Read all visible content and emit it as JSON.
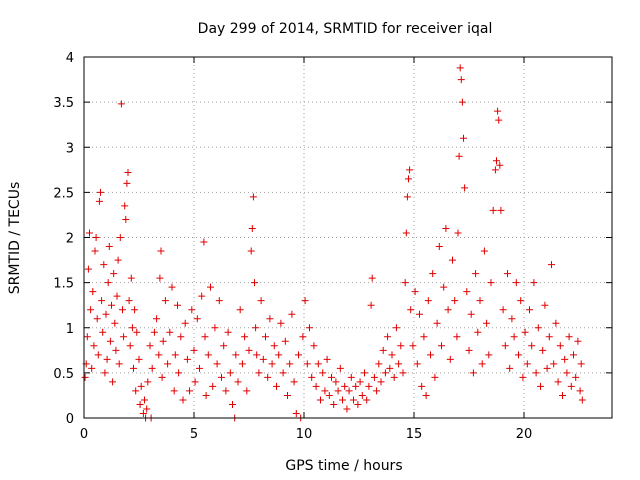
{
  "chart_data": {
    "type": "scatter",
    "title": "Day 299 of 2014, SRMTID for receiver iqal",
    "xlabel": "GPS time / hours",
    "ylabel": "SRMTID / TECUs",
    "xlim": [
      0,
      24
    ],
    "ylim": [
      0,
      4
    ],
    "xticks": [
      0,
      5,
      10,
      15,
      20
    ],
    "xtick_labels": [
      "0",
      "5",
      "10",
      "15",
      "20"
    ],
    "yticks": [
      0,
      0.5,
      1,
      1.5,
      2,
      2.5,
      3,
      3.5,
      4
    ],
    "ytick_labels": [
      "0",
      "0.5",
      "1",
      "1.5",
      "2",
      "2.5",
      "3",
      "3.5",
      "4"
    ],
    "grid": true,
    "marker": "+",
    "color": "#e00000",
    "series": [
      {
        "name": "SRMTID",
        "points": [
          [
            0.05,
            0.45
          ],
          [
            0.1,
            0.6
          ],
          [
            0.15,
            0.9
          ],
          [
            0.2,
            1.65
          ],
          [
            0.25,
            2.05
          ],
          [
            0.3,
            1.2
          ],
          [
            0.35,
            0.55
          ],
          [
            0.4,
            1.4
          ],
          [
            0.45,
            0.8
          ],
          [
            0.5,
            1.85
          ],
          [
            0.55,
            2.0
          ],
          [
            0.6,
            1.1
          ],
          [
            0.65,
            0.7
          ],
          [
            0.7,
            2.4
          ],
          [
            0.75,
            2.5
          ],
          [
            0.8,
            1.3
          ],
          [
            0.85,
            0.95
          ],
          [
            0.9,
            1.7
          ],
          [
            0.95,
            0.5
          ],
          [
            1.0,
            1.15
          ],
          [
            1.05,
            0.65
          ],
          [
            1.1,
            1.5
          ],
          [
            1.15,
            1.9
          ],
          [
            1.2,
            0.85
          ],
          [
            1.25,
            1.25
          ],
          [
            1.3,
            0.4
          ],
          [
            1.35,
            1.6
          ],
          [
            1.4,
            1.05
          ],
          [
            1.45,
            0.75
          ],
          [
            1.5,
            1.35
          ],
          [
            1.55,
            1.75
          ],
          [
            1.6,
            0.6
          ],
          [
            1.65,
            2.0
          ],
          [
            1.7,
            3.48
          ],
          [
            1.75,
            1.2
          ],
          [
            1.8,
            0.9
          ],
          [
            1.85,
            2.35
          ],
          [
            1.9,
            2.2
          ],
          [
            1.95,
            2.6
          ],
          [
            2.0,
            2.72
          ],
          [
            2.05,
            1.3
          ],
          [
            2.1,
            0.8
          ],
          [
            2.15,
            1.55
          ],
          [
            2.2,
            1.0
          ],
          [
            2.25,
            0.55
          ],
          [
            2.3,
            1.2
          ],
          [
            2.35,
            0.3
          ],
          [
            2.4,
            0.95
          ],
          [
            2.5,
            0.65
          ],
          [
            2.55,
            0.15
          ],
          [
            2.6,
            0.35
          ],
          [
            2.7,
            0.05
          ],
          [
            2.75,
            0.2
          ],
          [
            2.8,
            0.0
          ],
          [
            2.85,
            0.1
          ],
          [
            2.9,
            0.4
          ],
          [
            3.0,
            0.8
          ],
          [
            3.05,
            0.0
          ],
          [
            3.1,
            0.55
          ],
          [
            3.2,
            0.95
          ],
          [
            3.3,
            1.1
          ],
          [
            3.4,
            0.7
          ],
          [
            3.45,
            1.55
          ],
          [
            3.5,
            1.85
          ],
          [
            3.55,
            0.45
          ],
          [
            3.6,
            0.85
          ],
          [
            3.7,
            1.3
          ],
          [
            3.8,
            0.6
          ],
          [
            3.9,
            0.95
          ],
          [
            4.0,
            1.45
          ],
          [
            4.1,
            0.3
          ],
          [
            4.15,
            0.7
          ],
          [
            4.25,
            1.25
          ],
          [
            4.3,
            0.5
          ],
          [
            4.4,
            0.9
          ],
          [
            4.5,
            0.2
          ],
          [
            4.6,
            1.05
          ],
          [
            4.7,
            0.65
          ],
          [
            4.8,
            0.3
          ],
          [
            4.9,
            1.2
          ],
          [
            5.0,
            0.75
          ],
          [
            5.05,
            0.4
          ],
          [
            5.15,
            1.1
          ],
          [
            5.25,
            0.55
          ],
          [
            5.35,
            1.35
          ],
          [
            5.45,
            1.95
          ],
          [
            5.5,
            0.9
          ],
          [
            5.55,
            0.25
          ],
          [
            5.65,
            0.7
          ],
          [
            5.75,
            1.45
          ],
          [
            5.85,
            0.35
          ],
          [
            5.95,
            1.0
          ],
          [
            6.05,
            0.6
          ],
          [
            6.15,
            1.3
          ],
          [
            6.25,
            0.45
          ],
          [
            6.35,
            0.8
          ],
          [
            6.45,
            0.3
          ],
          [
            6.55,
            0.95
          ],
          [
            6.65,
            0.5
          ],
          [
            6.75,
            0.15
          ],
          [
            6.85,
            0.0
          ],
          [
            6.9,
            0.7
          ],
          [
            7.0,
            0.4
          ],
          [
            7.1,
            1.2
          ],
          [
            7.2,
            0.6
          ],
          [
            7.3,
            0.9
          ],
          [
            7.4,
            0.3
          ],
          [
            7.5,
            0.75
          ],
          [
            7.6,
            1.85
          ],
          [
            7.65,
            2.1
          ],
          [
            7.7,
            2.45
          ],
          [
            7.75,
            1.5
          ],
          [
            7.8,
            1.0
          ],
          [
            7.85,
            0.7
          ],
          [
            7.95,
            0.5
          ],
          [
            8.05,
            1.3
          ],
          [
            8.15,
            0.65
          ],
          [
            8.25,
            0.9
          ],
          [
            8.35,
            0.45
          ],
          [
            8.45,
            1.1
          ],
          [
            8.55,
            0.6
          ],
          [
            8.65,
            0.8
          ],
          [
            8.75,
            0.35
          ],
          [
            8.85,
            0.7
          ],
          [
            8.95,
            1.05
          ],
          [
            9.05,
            0.5
          ],
          [
            9.15,
            0.85
          ],
          [
            9.25,
            0.25
          ],
          [
            9.35,
            0.6
          ],
          [
            9.45,
            1.15
          ],
          [
            9.55,
            0.4
          ],
          [
            9.65,
            0.05
          ],
          [
            9.75,
            0.7
          ],
          [
            9.85,
            0.0
          ],
          [
            9.95,
            0.9
          ],
          [
            10.05,
            1.3
          ],
          [
            10.15,
            0.6
          ],
          [
            10.25,
            1.0
          ],
          [
            10.35,
            0.45
          ],
          [
            10.45,
            0.8
          ],
          [
            10.55,
            0.35
          ],
          [
            10.65,
            0.6
          ],
          [
            10.75,
            0.2
          ],
          [
            10.85,
            0.5
          ],
          [
            10.95,
            0.3
          ],
          [
            11.05,
            0.65
          ],
          [
            11.15,
            0.25
          ],
          [
            11.25,
            0.45
          ],
          [
            11.35,
            0.15
          ],
          [
            11.45,
            0.4
          ],
          [
            11.55,
            0.3
          ],
          [
            11.65,
            0.55
          ],
          [
            11.75,
            0.2
          ],
          [
            11.85,
            0.35
          ],
          [
            11.95,
            0.1
          ],
          [
            12.05,
            0.3
          ],
          [
            12.15,
            0.45
          ],
          [
            12.25,
            0.2
          ],
          [
            12.35,
            0.35
          ],
          [
            12.45,
            0.15
          ],
          [
            12.55,
            0.4
          ],
          [
            12.65,
            0.25
          ],
          [
            12.75,
            0.5
          ],
          [
            12.85,
            0.2
          ],
          [
            12.95,
            0.35
          ],
          [
            13.05,
            1.25
          ],
          [
            13.1,
            1.55
          ],
          [
            13.2,
            0.45
          ],
          [
            13.3,
            0.3
          ],
          [
            13.4,
            0.6
          ],
          [
            13.5,
            0.4
          ],
          [
            13.6,
            0.75
          ],
          [
            13.7,
            0.5
          ],
          [
            13.8,
            0.9
          ],
          [
            13.9,
            0.55
          ],
          [
            14.0,
            0.7
          ],
          [
            14.1,
            0.45
          ],
          [
            14.2,
            1.0
          ],
          [
            14.3,
            0.6
          ],
          [
            14.4,
            0.8
          ],
          [
            14.5,
            0.5
          ],
          [
            14.6,
            1.5
          ],
          [
            14.65,
            2.05
          ],
          [
            14.7,
            2.45
          ],
          [
            14.75,
            2.65
          ],
          [
            14.8,
            2.75
          ],
          [
            14.85,
            1.2
          ],
          [
            14.95,
            0.8
          ],
          [
            15.05,
            1.4
          ],
          [
            15.15,
            0.6
          ],
          [
            15.25,
            1.15
          ],
          [
            15.35,
            0.35
          ],
          [
            15.45,
            0.9
          ],
          [
            15.55,
            0.25
          ],
          [
            15.65,
            1.3
          ],
          [
            15.75,
            0.7
          ],
          [
            15.85,
            1.6
          ],
          [
            15.95,
            0.45
          ],
          [
            16.05,
            1.05
          ],
          [
            16.15,
            1.9
          ],
          [
            16.25,
            0.8
          ],
          [
            16.35,
            1.45
          ],
          [
            16.45,
            2.1
          ],
          [
            16.55,
            1.2
          ],
          [
            16.65,
            0.65
          ],
          [
            16.75,
            1.75
          ],
          [
            16.85,
            1.3
          ],
          [
            16.95,
            0.9
          ],
          [
            17.0,
            2.05
          ],
          [
            17.05,
            2.9
          ],
          [
            17.1,
            3.88
          ],
          [
            17.15,
            3.75
          ],
          [
            17.2,
            3.5
          ],
          [
            17.25,
            3.1
          ],
          [
            17.3,
            2.55
          ],
          [
            17.4,
            1.4
          ],
          [
            17.5,
            0.75
          ],
          [
            17.6,
            1.15
          ],
          [
            17.7,
            0.5
          ],
          [
            17.8,
            1.6
          ],
          [
            17.9,
            0.95
          ],
          [
            18.0,
            1.3
          ],
          [
            18.1,
            0.6
          ],
          [
            18.2,
            1.85
          ],
          [
            18.3,
            1.05
          ],
          [
            18.4,
            0.7
          ],
          [
            18.5,
            1.5
          ],
          [
            18.6,
            2.3
          ],
          [
            18.7,
            2.75
          ],
          [
            18.75,
            2.85
          ],
          [
            18.8,
            3.4
          ],
          [
            18.85,
            3.3
          ],
          [
            18.9,
            2.8
          ],
          [
            18.95,
            2.3
          ],
          [
            19.05,
            1.2
          ],
          [
            19.15,
            0.8
          ],
          [
            19.25,
            1.6
          ],
          [
            19.35,
            0.55
          ],
          [
            19.45,
            1.1
          ],
          [
            19.55,
            0.9
          ],
          [
            19.65,
            1.5
          ],
          [
            19.75,
            0.7
          ],
          [
            19.85,
            1.3
          ],
          [
            19.95,
            0.45
          ],
          [
            20.05,
            0.95
          ],
          [
            20.15,
            0.6
          ],
          [
            20.25,
            1.2
          ],
          [
            20.35,
            0.8
          ],
          [
            20.45,
            1.5
          ],
          [
            20.55,
            0.5
          ],
          [
            20.65,
            1.0
          ],
          [
            20.75,
            0.35
          ],
          [
            20.85,
            0.75
          ],
          [
            20.95,
            1.25
          ],
          [
            21.05,
            0.55
          ],
          [
            21.15,
            0.9
          ],
          [
            21.25,
            1.7
          ],
          [
            21.35,
            0.6
          ],
          [
            21.45,
            1.05
          ],
          [
            21.55,
            0.4
          ],
          [
            21.65,
            0.8
          ],
          [
            21.75,
            0.25
          ],
          [
            21.85,
            0.65
          ],
          [
            21.95,
            0.5
          ],
          [
            22.05,
            0.9
          ],
          [
            22.15,
            0.35
          ],
          [
            22.25,
            0.7
          ],
          [
            22.35,
            0.45
          ],
          [
            22.45,
            0.85
          ],
          [
            22.55,
            0.3
          ],
          [
            22.6,
            0.6
          ],
          [
            22.65,
            0.2
          ]
        ]
      }
    ]
  }
}
